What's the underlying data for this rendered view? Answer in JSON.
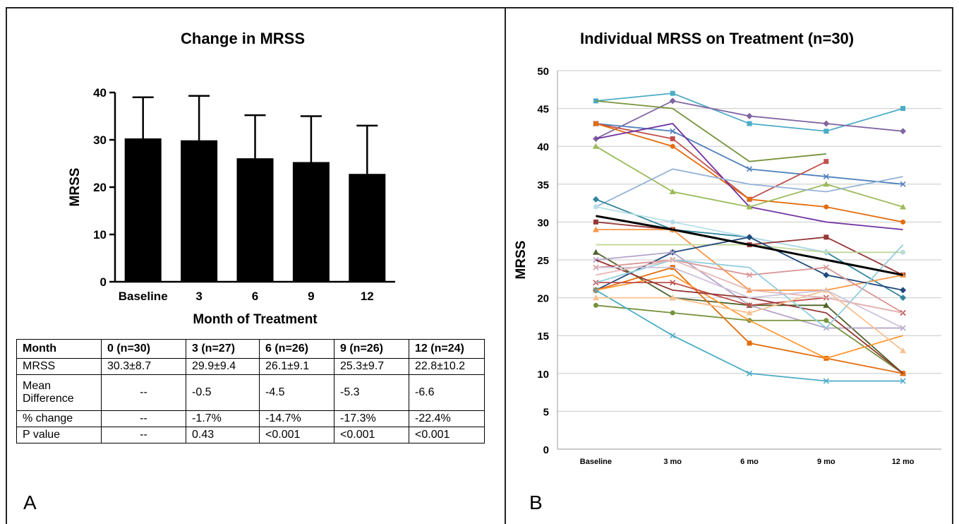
{
  "panel_a": {
    "title": "Change in MRSS",
    "letter": "A",
    "chart_data": {
      "type": "bar",
      "categories": [
        "Baseline",
        "3",
        "6",
        "9",
        "12"
      ],
      "values": [
        30.3,
        29.9,
        26.1,
        25.3,
        22.8
      ],
      "error_upper": [
        39.0,
        39.3,
        35.2,
        35.0,
        33.0
      ],
      "title": "Change in MRSS",
      "xlabel": "Month of Treatment",
      "ylabel": "MRSS",
      "ylim": [
        0,
        40
      ],
      "yticks": [
        0,
        10,
        20,
        30,
        40
      ],
      "bar_color": "#000000"
    },
    "table": {
      "header": [
        "Month",
        "0 (n=30)",
        "3 (n=27)",
        "6 (n=26)",
        "9 (n=26)",
        "12 (n=24)"
      ],
      "rows": [
        [
          "MRSS",
          "30.3±8.7",
          "29.9±9.4",
          "26.1±9.1",
          "25.3±9.7",
          "22.8±10.2"
        ],
        [
          "Mean Difference",
          "--",
          "-0.5",
          "-4.5",
          "-5.3",
          "-6.6"
        ],
        [
          "% change",
          "--",
          "-1.7%",
          "-14.7%",
          "-17.3%",
          "-22.4%"
        ],
        [
          "P value",
          "--",
          "0.43",
          "<0.001",
          "<0.001",
          "<0.001"
        ]
      ]
    }
  },
  "panel_b": {
    "title": "Individual MRSS on Treatment (n=30)",
    "letter": "B",
    "chart_data": {
      "type": "line",
      "x": [
        "Baseline",
        "3 mo",
        "6 mo",
        "9 mo",
        "12 mo"
      ],
      "ylabel": "MRSS",
      "ylim": [
        0,
        50
      ],
      "yticks": [
        0,
        5,
        10,
        15,
        20,
        25,
        30,
        35,
        40,
        45,
        50
      ],
      "grid": true,
      "series": [
        {
          "color": "#4bacc6",
          "marker": "square",
          "values": [
            46,
            47,
            43,
            42,
            45
          ]
        },
        {
          "color": "#8064a2",
          "marker": "diamond",
          "values": [
            41,
            46,
            44,
            43,
            42
          ]
        },
        {
          "color": "#77933c",
          "marker": "none",
          "values": [
            46,
            45,
            38,
            39,
            null
          ]
        },
        {
          "color": "#4f81bd",
          "marker": "x",
          "values": [
            43,
            42,
            37,
            36,
            35
          ]
        },
        {
          "color": "#c0504d",
          "marker": "square",
          "values": [
            43,
            41,
            33,
            38,
            null
          ]
        },
        {
          "color": "#e46c0a",
          "marker": "circle",
          "values": [
            43,
            40,
            33,
            32,
            30
          ]
        },
        {
          "color": "#7030a0",
          "marker": "none",
          "values": [
            41,
            43,
            32,
            30,
            29
          ]
        },
        {
          "color": "#9bbb59",
          "marker": "triangle",
          "values": [
            40,
            34,
            32,
            35,
            32
          ]
        },
        {
          "color": "#95b3d7",
          "marker": "none",
          "values": [
            32,
            37,
            35,
            34,
            36
          ]
        },
        {
          "color": "#31859c",
          "marker": "diamond",
          "values": [
            33,
            29,
            28,
            26,
            20
          ]
        },
        {
          "color": "#b7dee8",
          "marker": "circle",
          "values": [
            32,
            30,
            28,
            26,
            26
          ]
        },
        {
          "color": "#953735",
          "marker": "square",
          "values": [
            30,
            29,
            27,
            28,
            23
          ]
        },
        {
          "color": "#f79646",
          "marker": "triangle",
          "values": [
            29,
            29,
            21,
            21,
            23
          ]
        },
        {
          "color": "#c3d69b",
          "marker": "none",
          "values": [
            27,
            27,
            27,
            26,
            26
          ]
        },
        {
          "color": "#4f6228",
          "marker": "triangle",
          "values": [
            26,
            20,
            19,
            19,
            10
          ]
        },
        {
          "color": "#1f497d",
          "marker": "diamond",
          "values": [
            21,
            26,
            28,
            23,
            21
          ]
        },
        {
          "color": "#b3a2c7",
          "marker": "x",
          "values": [
            25,
            26,
            19,
            16,
            16
          ]
        },
        {
          "color": "#d99694",
          "marker": "x",
          "values": [
            24,
            25,
            23,
            24,
            18
          ]
        },
        {
          "color": "#76923c",
          "marker": "circle",
          "values": [
            19,
            18,
            17,
            17,
            10
          ]
        },
        {
          "color": "#e46c0a",
          "marker": "square",
          "values": [
            21,
            24,
            14,
            12,
            10
          ]
        },
        {
          "color": "#ff9933",
          "marker": "none",
          "values": [
            21,
            23,
            17,
            12,
            15
          ]
        },
        {
          "color": "#c0504d",
          "marker": "x",
          "values": [
            22,
            22,
            19,
            20,
            18
          ]
        },
        {
          "color": "#943634",
          "marker": "none",
          "values": [
            25,
            21,
            20,
            18,
            10
          ]
        },
        {
          "color": "#4bacc6",
          "marker": "x",
          "values": [
            21,
            15,
            10,
            9,
            9
          ]
        },
        {
          "color": "#93cddd",
          "marker": "none",
          "values": [
            22,
            25,
            24,
            16,
            27
          ]
        },
        {
          "color": "#fac090",
          "marker": "triangle",
          "values": [
            20,
            20,
            18,
            21,
            13
          ]
        },
        {
          "color": "#ccc1da",
          "marker": "none",
          "values": [
            24,
            24,
            20,
            21,
            16
          ]
        },
        {
          "color": "#e6b9b8",
          "marker": "none",
          "values": [
            23,
            25,
            21,
            20,
            18
          ]
        },
        {
          "color": "#000000",
          "marker": "none",
          "width": 3,
          "values": [
            30.8,
            29.0,
            27.0,
            25.0,
            23.0
          ]
        }
      ]
    }
  }
}
